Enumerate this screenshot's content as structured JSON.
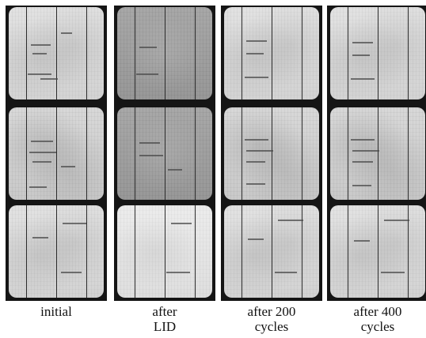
{
  "panels": [
    {
      "caption_line1": "initial",
      "caption_line2": ""
    },
    {
      "caption_line1": "after",
      "caption_line2": "LID"
    },
    {
      "caption_line1": "after 200",
      "caption_line2": "cycles"
    },
    {
      "caption_line1": "after 400",
      "caption_line2": "cycles"
    }
  ]
}
